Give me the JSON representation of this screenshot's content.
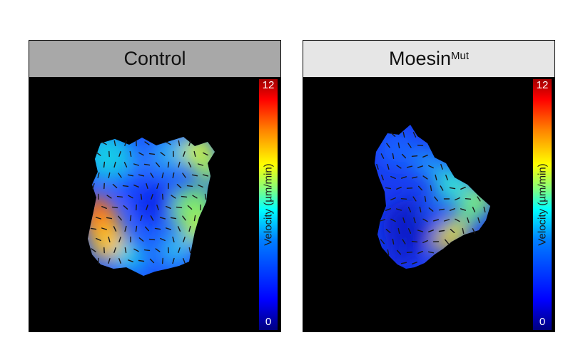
{
  "panels": [
    {
      "title": "Control",
      "title_sup": "",
      "colorbar": {
        "max": "12",
        "min": "0",
        "label": "Velocity (µm/min)"
      }
    },
    {
      "title": "Moesin",
      "title_sup": "Mut",
      "colorbar": {
        "max": "12",
        "min": "0",
        "label": "Velocity (µm/min)"
      }
    }
  ],
  "colors": {
    "background": "#000000",
    "header_control": "#a8a8a8",
    "header_mutant": "#e6e6e6",
    "arrow": "#1a1a1a"
  }
}
